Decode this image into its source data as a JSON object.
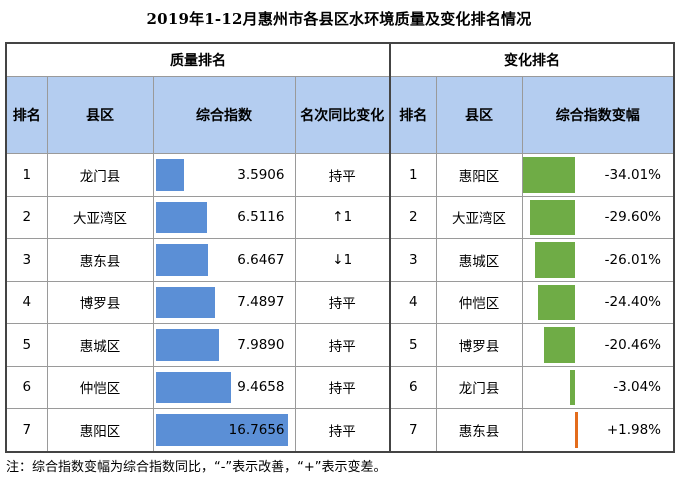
{
  "title": "2019年1-12月惠州市各县区水环境质量及变化排名情况",
  "groups": {
    "quality": "质量排名",
    "change": "变化排名"
  },
  "headers": {
    "rank": "排名",
    "county": "县区",
    "index": "综合指数",
    "rank_change": "名次同比变化",
    "rank2": "排名",
    "county2": "县区",
    "index_change": "综合指数变幅"
  },
  "quality_rows": [
    {
      "rank": "1",
      "county": "龙门县",
      "index": "3.5906",
      "index_value": 3.5906,
      "change": "持平"
    },
    {
      "rank": "2",
      "county": "大亚湾区",
      "index": "6.5116",
      "index_value": 6.5116,
      "change": "↑1"
    },
    {
      "rank": "3",
      "county": "惠东县",
      "index": "6.6467",
      "index_value": 6.6467,
      "change": "↓1"
    },
    {
      "rank": "4",
      "county": "博罗县",
      "index": "7.4897",
      "index_value": 7.4897,
      "change": "持平"
    },
    {
      "rank": "5",
      "county": "惠城区",
      "index": "7.9890",
      "index_value": 7.989,
      "change": "持平"
    },
    {
      "rank": "6",
      "county": "仲恺区",
      "index": "9.4658",
      "index_value": 9.4658,
      "change": "持平"
    },
    {
      "rank": "7",
      "county": "惠阳区",
      "index": "16.7656",
      "index_value": 16.7656,
      "change": "持平"
    }
  ],
  "change_rows": [
    {
      "rank": "1",
      "county": "惠阳区",
      "change": "-34.01%",
      "change_value": -34.01
    },
    {
      "rank": "2",
      "county": "大亚湾区",
      "change": "-29.60%",
      "change_value": -29.6
    },
    {
      "rank": "3",
      "county": "惠城区",
      "change": "-26.01%",
      "change_value": -26.01
    },
    {
      "rank": "4",
      "county": "仲恺区",
      "change": "-24.40%",
      "change_value": -24.4
    },
    {
      "rank": "5",
      "county": "博罗县",
      "change": "-20.46%",
      "change_value": -20.46
    },
    {
      "rank": "6",
      "county": "龙门县",
      "change": "-3.04%",
      "change_value": -3.04
    },
    {
      "rank": "7",
      "county": "惠东县",
      "change": "+1.98%",
      "change_value": 1.98
    }
  ],
  "colors": {
    "header_bg": "#b4cdf0",
    "quality_bar": "#5b8fd6",
    "improve_bar": "#6fac46",
    "worsen_bar": "#e36c1c"
  },
  "note": "注：综合指数变幅为综合指数同比，“-”表示改善，“+”表示变差。"
}
